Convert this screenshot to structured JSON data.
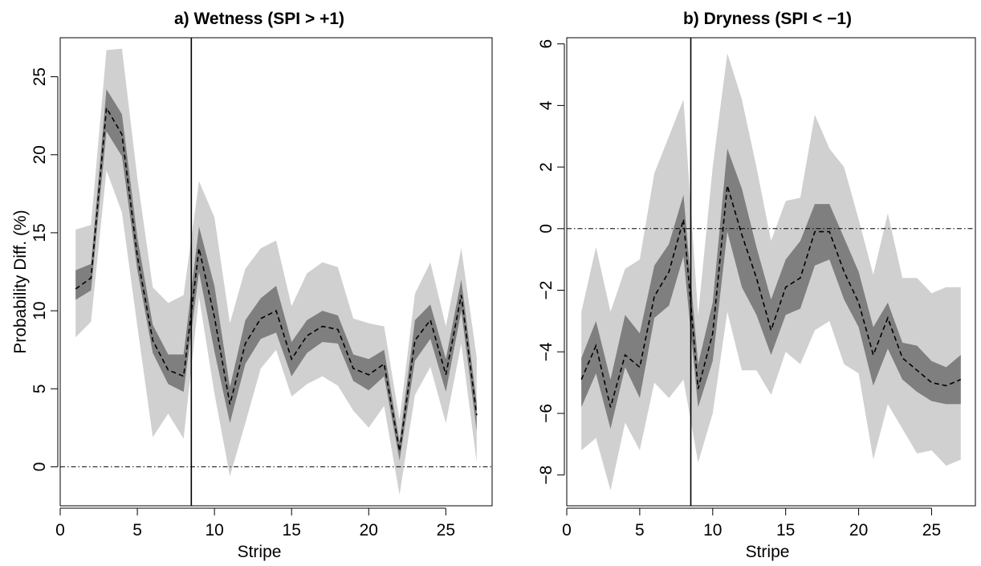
{
  "colors": {
    "outer_band": "#d0d0d0",
    "inner_band": "#7f7f7f",
    "median_line": "#000000",
    "reference_line": "#000000",
    "background": "#ffffff"
  },
  "chart_data": [
    {
      "type": "area",
      "title": "a) Wetness (SPI > +1)",
      "xlabel": "Stripe",
      "ylabel": "Probability Diff. (%)",
      "xlim": [
        0,
        28
      ],
      "ylim": [
        -2.5,
        27.5
      ],
      "xticks": [
        0,
        5,
        10,
        15,
        20,
        25
      ],
      "yticks": [
        0,
        5,
        10,
        15,
        20,
        25
      ],
      "ytick_labels": [
        "0",
        "5",
        "10",
        "15",
        "20",
        "25"
      ],
      "vline_x": 8.5,
      "hline_y": 0,
      "x": [
        1,
        2,
        3,
        4,
        5,
        6,
        7,
        8,
        9,
        10,
        11,
        12,
        13,
        14,
        15,
        16,
        17,
        18,
        19,
        20,
        21,
        22,
        23,
        24,
        25,
        26,
        27
      ],
      "outer_upper": [
        15.2,
        15.5,
        26.7,
        26.8,
        18.5,
        11.5,
        10.5,
        11.0,
        18.3,
        16.0,
        9.2,
        12.7,
        14.0,
        14.5,
        10.3,
        12.4,
        13.1,
        12.8,
        9.5,
        9.2,
        9.0,
        3.0,
        11.1,
        13.1,
        9.0,
        14.0,
        7.0
      ],
      "outer_lower": [
        8.3,
        9.3,
        19.0,
        16.3,
        9.0,
        1.9,
        3.4,
        1.8,
        10.9,
        4.7,
        -0.6,
        2.8,
        6.3,
        7.5,
        4.5,
        5.3,
        5.8,
        5.2,
        3.6,
        2.5,
        3.9,
        -1.8,
        4.6,
        6.4,
        2.8,
        7.9,
        0.3
      ],
      "inner_upper": [
        12.6,
        13.0,
        24.2,
        22.6,
        14.7,
        9.1,
        7.2,
        7.2,
        15.4,
        11.6,
        5.1,
        9.4,
        10.8,
        11.6,
        8.0,
        9.4,
        10.0,
        9.7,
        7.2,
        6.9,
        7.5,
        1.6,
        9.4,
        10.4,
        6.9,
        12.0,
        4.1
      ],
      "inner_lower": [
        10.7,
        11.3,
        21.5,
        19.9,
        12.6,
        7.3,
        5.3,
        4.8,
        12.5,
        7.4,
        2.8,
        6.6,
        8.2,
        8.6,
        5.8,
        7.3,
        8.0,
        7.9,
        5.5,
        4.9,
        5.8,
        0.4,
        6.8,
        8.2,
        4.8,
        10.0,
        2.3
      ],
      "median": [
        11.4,
        12.1,
        23.0,
        21.3,
        13.5,
        8.1,
        6.2,
        5.8,
        14.0,
        9.6,
        4.0,
        7.9,
        9.5,
        10.0,
        6.9,
        8.4,
        9.0,
        8.8,
        6.3,
        5.9,
        6.6,
        1.0,
        8.1,
        9.4,
        5.9,
        11.0,
        3.3
      ]
    },
    {
      "type": "area",
      "title": "b) Dryness (SPI < −1)",
      "xlabel": "Stripe",
      "ylabel": "",
      "xlim": [
        0,
        28
      ],
      "ylim": [
        -9,
        6.2
      ],
      "xticks": [
        0,
        5,
        10,
        15,
        20,
        25
      ],
      "yticks": [
        -8,
        -6,
        -4,
        -2,
        0,
        2,
        4,
        6
      ],
      "ytick_labels": [
        "−8",
        "−6",
        "−4",
        "−2",
        "0",
        "2",
        "4",
        "6"
      ],
      "vline_x": 8.5,
      "hline_y": 0,
      "x": [
        1,
        2,
        3,
        4,
        5,
        6,
        7,
        8,
        9,
        10,
        11,
        12,
        13,
        14,
        15,
        16,
        17,
        18,
        19,
        20,
        21,
        22,
        23,
        24,
        25,
        26,
        27
      ],
      "outer_upper": [
        -2.7,
        -0.6,
        -2.7,
        -1.3,
        -1.0,
        1.8,
        3.0,
        4.2,
        -2.8,
        2.0,
        5.7,
        4.2,
        2.0,
        -0.4,
        0.9,
        1.0,
        3.7,
        2.6,
        2.0,
        0.3,
        -1.5,
        0.5,
        -1.6,
        -1.6,
        -2.1,
        -1.9,
        -1.9
      ],
      "outer_lower": [
        -7.2,
        -6.8,
        -8.5,
        -6.3,
        -7.2,
        -5.0,
        -5.5,
        -4.9,
        -7.6,
        -6.0,
        -2.7,
        -4.6,
        -4.6,
        -5.4,
        -4.0,
        -4.4,
        -3.3,
        -3.0,
        -4.4,
        -4.7,
        -7.5,
        -5.7,
        -6.5,
        -7.3,
        -7.2,
        -7.7,
        -7.5
      ],
      "inner_upper": [
        -4.2,
        -3.0,
        -4.9,
        -2.8,
        -3.4,
        -1.2,
        -0.5,
        1.1,
        -4.4,
        -2.4,
        2.6,
        1.3,
        -0.6,
        -2.3,
        -1.0,
        -0.4,
        0.8,
        0.8,
        -0.3,
        -1.4,
        -3.2,
        -2.4,
        -3.7,
        -3.8,
        -4.3,
        -4.5,
        -4.1
      ],
      "inner_lower": [
        -5.8,
        -4.7,
        -6.5,
        -4.5,
        -5.5,
        -2.9,
        -2.5,
        -0.9,
        -5.8,
        -4.3,
        -0.1,
        -1.9,
        -2.8,
        -4.1,
        -2.8,
        -2.6,
        -1.2,
        -1.0,
        -2.3,
        -3.2,
        -5.1,
        -3.9,
        -4.9,
        -5.3,
        -5.6,
        -5.7,
        -5.7
      ],
      "median": [
        -4.9,
        -3.8,
        -5.8,
        -4.1,
        -4.5,
        -2.2,
        -1.4,
        0.3,
        -5.2,
        -3.4,
        1.4,
        -0.2,
        -1.6,
        -3.3,
        -1.9,
        -1.6,
        -0.1,
        -0.1,
        -1.4,
        -2.4,
        -4.1,
        -2.9,
        -4.2,
        -4.6,
        -5.0,
        -5.1,
        -4.9
      ]
    }
  ]
}
